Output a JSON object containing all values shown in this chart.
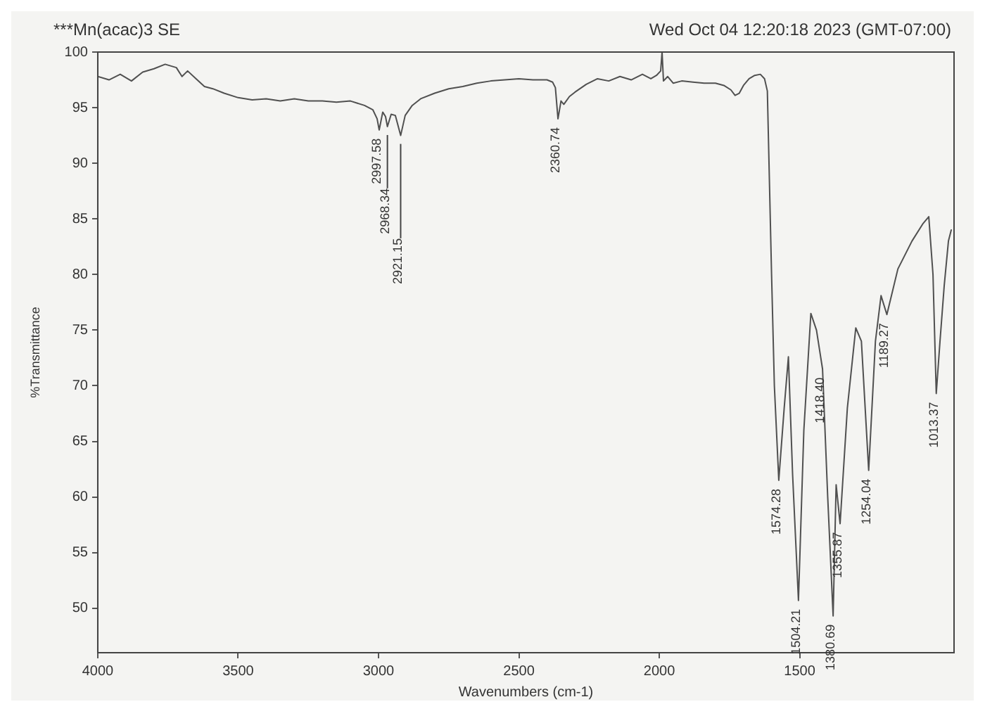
{
  "chart_data": {
    "type": "line",
    "title": "***Mn(acac)3 SE",
    "xlabel": "Wavenumbers (cm-1)",
    "ylabel": "%Transmittance",
    "x": [
      4000,
      3960,
      3920,
      3880,
      3840,
      3800,
      3760,
      3720,
      3700,
      3680,
      3650,
      3620,
      3590,
      3550,
      3500,
      3450,
      3400,
      3350,
      3300,
      3250,
      3200,
      3150,
      3100,
      3050,
      3020,
      3005,
      2997.58,
      2985,
      2975,
      2968.34,
      2955,
      2940,
      2921.15,
      2905,
      2880,
      2850,
      2800,
      2750,
      2700,
      2650,
      2600,
      2550,
      2500,
      2450,
      2400,
      2380,
      2370,
      2360.74,
      2350,
      2340,
      2320,
      2300,
      2260,
      2220,
      2180,
      2140,
      2100,
      2060,
      2030,
      2010,
      1995,
      1990,
      1985,
      1970,
      1950,
      1920,
      1880,
      1840,
      1800,
      1770,
      1745,
      1730,
      1715,
      1700,
      1680,
      1660,
      1640,
      1625,
      1615,
      1600,
      1590,
      1574.28,
      1555,
      1540,
      1525,
      1504.21,
      1485,
      1460,
      1440,
      1418.4,
      1400,
      1380.69,
      1370,
      1355.87,
      1330,
      1300,
      1280,
      1254.04,
      1230,
      1210,
      1189.27,
      1150,
      1100,
      1060,
      1040,
      1025,
      1013.37,
      1000,
      985,
      970,
      960
    ],
    "values": [
      97.8,
      97.5,
      98,
      97.4,
      98.2,
      98.5,
      98.9,
      98.6,
      97.8,
      98.3,
      97.6,
      96.9,
      96.7,
      96.3,
      95.9,
      95.7,
      95.8,
      95.6,
      95.8,
      95.6,
      95.6,
      95.5,
      95.6,
      95.2,
      94.8,
      94,
      93,
      94.6,
      94.2,
      93.3,
      94.4,
      94.3,
      92.5,
      94.3,
      95.2,
      95.8,
      96.3,
      96.7,
      96.9,
      97.2,
      97.4,
      97.5,
      97.6,
      97.5,
      97.5,
      97.3,
      96.8,
      94,
      95.6,
      95.3,
      96,
      96.4,
      97.1,
      97.6,
      97.4,
      97.8,
      97.5,
      98,
      97.6,
      97.9,
      98.3,
      100,
      97.4,
      97.8,
      97.2,
      97.4,
      97.3,
      97.2,
      97.2,
      97,
      96.6,
      96.1,
      96.3,
      97,
      97.6,
      97.9,
      98,
      97.6,
      96.5,
      80,
      70,
      61.5,
      68,
      72.6,
      62,
      50.7,
      66,
      76.5,
      75,
      71.5,
      60,
      49.3,
      61.1,
      57.6,
      68,
      75.2,
      74,
      62.4,
      74,
      78.1,
      76.4,
      80.5,
      83,
      84.6,
      85.2,
      80,
      69.3,
      74,
      79,
      83,
      84
    ],
    "color": "#505050",
    "xlim": [
      4000,
      950
    ],
    "ylim": [
      46,
      100
    ],
    "xticks": [
      4000,
      3500,
      3000,
      2500,
      2000,
      1500
    ],
    "yticks": [
      50,
      55,
      60,
      65,
      70,
      75,
      80,
      85,
      90,
      95,
      100
    ],
    "grid": false,
    "legend": false,
    "marker": "none",
    "line_style": "solid",
    "annotations": [
      "Wed Oct 04 12:20:18 2023 (GMT-07:00)",
      {
        "text": "2997.58",
        "x": 2997.58,
        "y": 93
      },
      {
        "text": "2968.34",
        "x": 2968.34,
        "y": 93.3
      },
      {
        "text": "2921.15",
        "x": 2921.15,
        "y": 92.5
      },
      {
        "text": "2360.74",
        "x": 2360.74,
        "y": 94
      },
      {
        "text": "1574.28",
        "x": 1574.28,
        "y": 61.5
      },
      {
        "text": "1504.21",
        "x": 1504.21,
        "y": 50.7
      },
      {
        "text": "1418.40",
        "x": 1418.4,
        "y": 71.5
      },
      {
        "text": "1380.69",
        "x": 1380.69,
        "y": 49.3
      },
      {
        "text": "1355.87",
        "x": 1355.87,
        "y": 57.6
      },
      {
        "text": "1254.04",
        "x": 1254.04,
        "y": 62.4
      },
      {
        "text": "1189.27",
        "x": 1189.27,
        "y": 76.4
      },
      {
        "text": "1013.37",
        "x": 1013.37,
        "y": 69.3
      }
    ]
  }
}
